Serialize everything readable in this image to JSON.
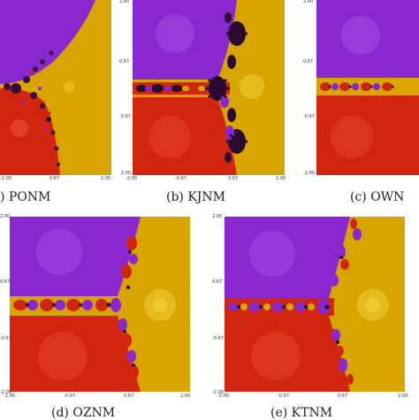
{
  "figure": {
    "panels": [
      {
        "id": "a",
        "caption": ") PONM",
        "ticks": {
          "x": [
            "-2.00",
            "0.67",
            "2.00"
          ],
          "y": []
        }
      },
      {
        "id": "b",
        "caption": "(b)  KJNM",
        "ticks": {
          "x": [
            "-2.00",
            "-0.67",
            "0.67",
            "2.00"
          ],
          "y": [
            "2.00",
            "0.67",
            "-0.67",
            "-2.00"
          ]
        }
      },
      {
        "id": "c",
        "caption": "(c)  OWN",
        "ticks": {
          "x": [],
          "y": [
            "2.00",
            "0.67",
            "-0.67",
            "-2.00"
          ]
        }
      },
      {
        "id": "d",
        "caption": "(d)  OZNM",
        "ticks": {
          "x": [
            "-2.00",
            "-0.67",
            "0.67",
            "2.00"
          ],
          "y": [
            "2.00",
            "0.67",
            "-0.67",
            "-2.00"
          ]
        }
      },
      {
        "id": "e",
        "caption": "(e)  KTNM",
        "ticks": {
          "x": [
            "-2.00",
            "-0.67",
            "0.67",
            "2.00"
          ],
          "y": [
            "2.00",
            "0.67",
            "-0.67",
            "-2.00"
          ]
        }
      }
    ],
    "colors": {
      "purple": "#8a28d0",
      "purple_light": "#a04ae0",
      "yellow": "#d8a500",
      "yellow_light": "#e6bb20",
      "red": "#d22510",
      "red_light": "#e0402a",
      "boundary": "#2a0a30"
    }
  }
}
